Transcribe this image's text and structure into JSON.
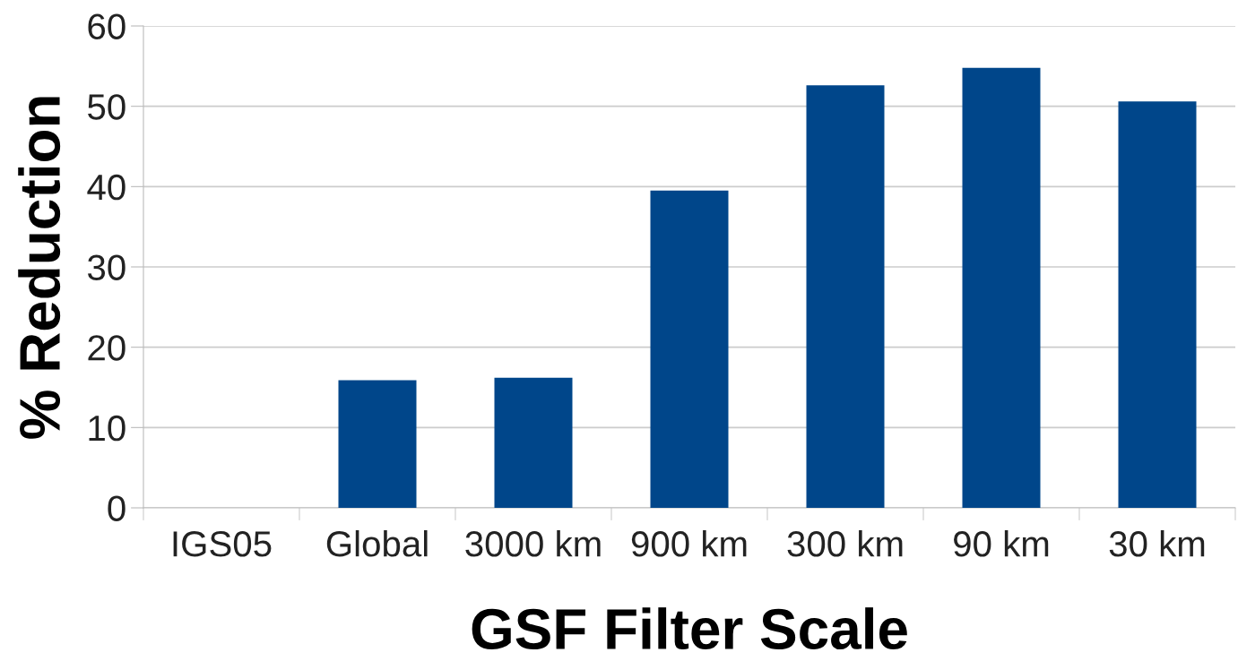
{
  "chart_data": {
    "type": "bar",
    "xlabel": "GSF Filter Scale",
    "ylabel": "% Reduction",
    "categories": [
      "IGS05",
      "Global",
      "3000 km",
      "900 km",
      "300 km",
      "90 km",
      "30 km"
    ],
    "values": [
      0,
      15.9,
      16.2,
      39.5,
      52.6,
      54.8,
      50.6
    ],
    "color": "#00468a",
    "ylim": [
      0,
      60
    ],
    "yticks": [
      0,
      10,
      20,
      30,
      40,
      50,
      60
    ],
    "grid": "y"
  }
}
